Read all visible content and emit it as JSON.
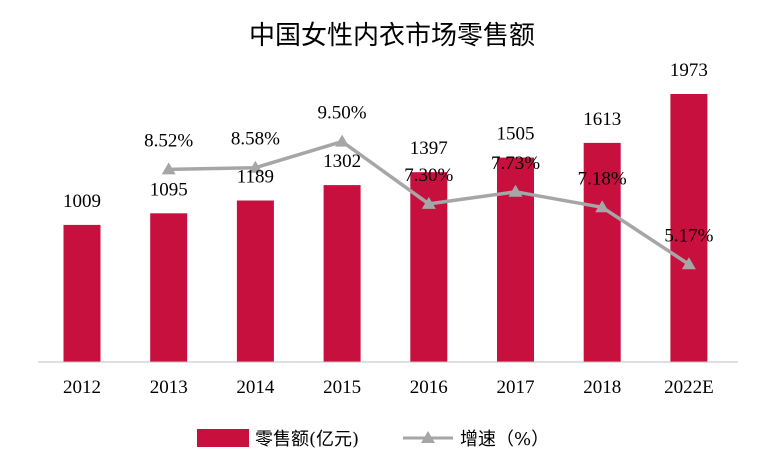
{
  "chart_data": {
    "type": "bar",
    "title": "中国女性内衣市场零售额",
    "categories": [
      "2012",
      "2013",
      "2014",
      "2015",
      "2016",
      "2017",
      "2018",
      "2022E"
    ],
    "series": [
      {
        "name": "零售额(亿元)",
        "type": "bar",
        "color": "#c8103e",
        "values": [
          1009,
          1095,
          1189,
          1302,
          1397,
          1505,
          1613,
          1973
        ],
        "labels": [
          "1009",
          "1095",
          "1189",
          "1302",
          "1397",
          "1505",
          "1613",
          "1973"
        ]
      },
      {
        "name": "增速（%）",
        "type": "line",
        "color": "#a6a6a6",
        "values": [
          null,
          8.52,
          8.58,
          9.5,
          7.3,
          7.73,
          7.18,
          5.17
        ],
        "labels": [
          "",
          "8.52%",
          "8.58%",
          "9.50%",
          "7.30%",
          "7.73%",
          "7.18%",
          "5.17%"
        ]
      }
    ],
    "ylim_bar": [
      0,
      2500
    ],
    "ylim_line": [
      0,
      14
    ],
    "grid": false,
    "legend_position": "bottom"
  }
}
